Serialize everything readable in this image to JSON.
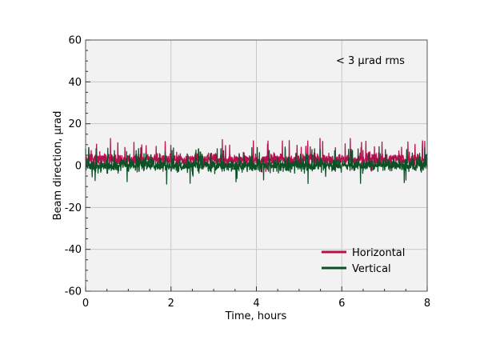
{
  "chart_data": {
    "type": "line",
    "title": "",
    "xlabel": "Time, hours",
    "ylabel": "Beam direction, µrad",
    "xlim": [
      0,
      8
    ],
    "ylim": [
      -60,
      60
    ],
    "xticks": [
      0,
      2,
      4,
      6,
      8
    ],
    "yticks": [
      -60,
      -40,
      -20,
      0,
      20,
      40,
      60
    ],
    "xtick_labels": [
      "0",
      "2",
      "4",
      "6",
      "8"
    ],
    "ytick_labels": [
      "-60",
      "-40",
      "-20",
      "0",
      "20",
      "40",
      "60"
    ],
    "grid": true,
    "legend_position": "bottom-right",
    "annotation": "< 3 µrad rms",
    "series": [
      {
        "name": "Horizontal",
        "color": "#b5104f",
        "mean": 3,
        "rms": 2.5,
        "peak_min": -3,
        "peak_max": 13
      },
      {
        "name": "Vertical",
        "color": "#0a5226",
        "mean": 0,
        "rms": 2.5,
        "peak_min": -9,
        "peak_max": 9
      }
    ]
  }
}
